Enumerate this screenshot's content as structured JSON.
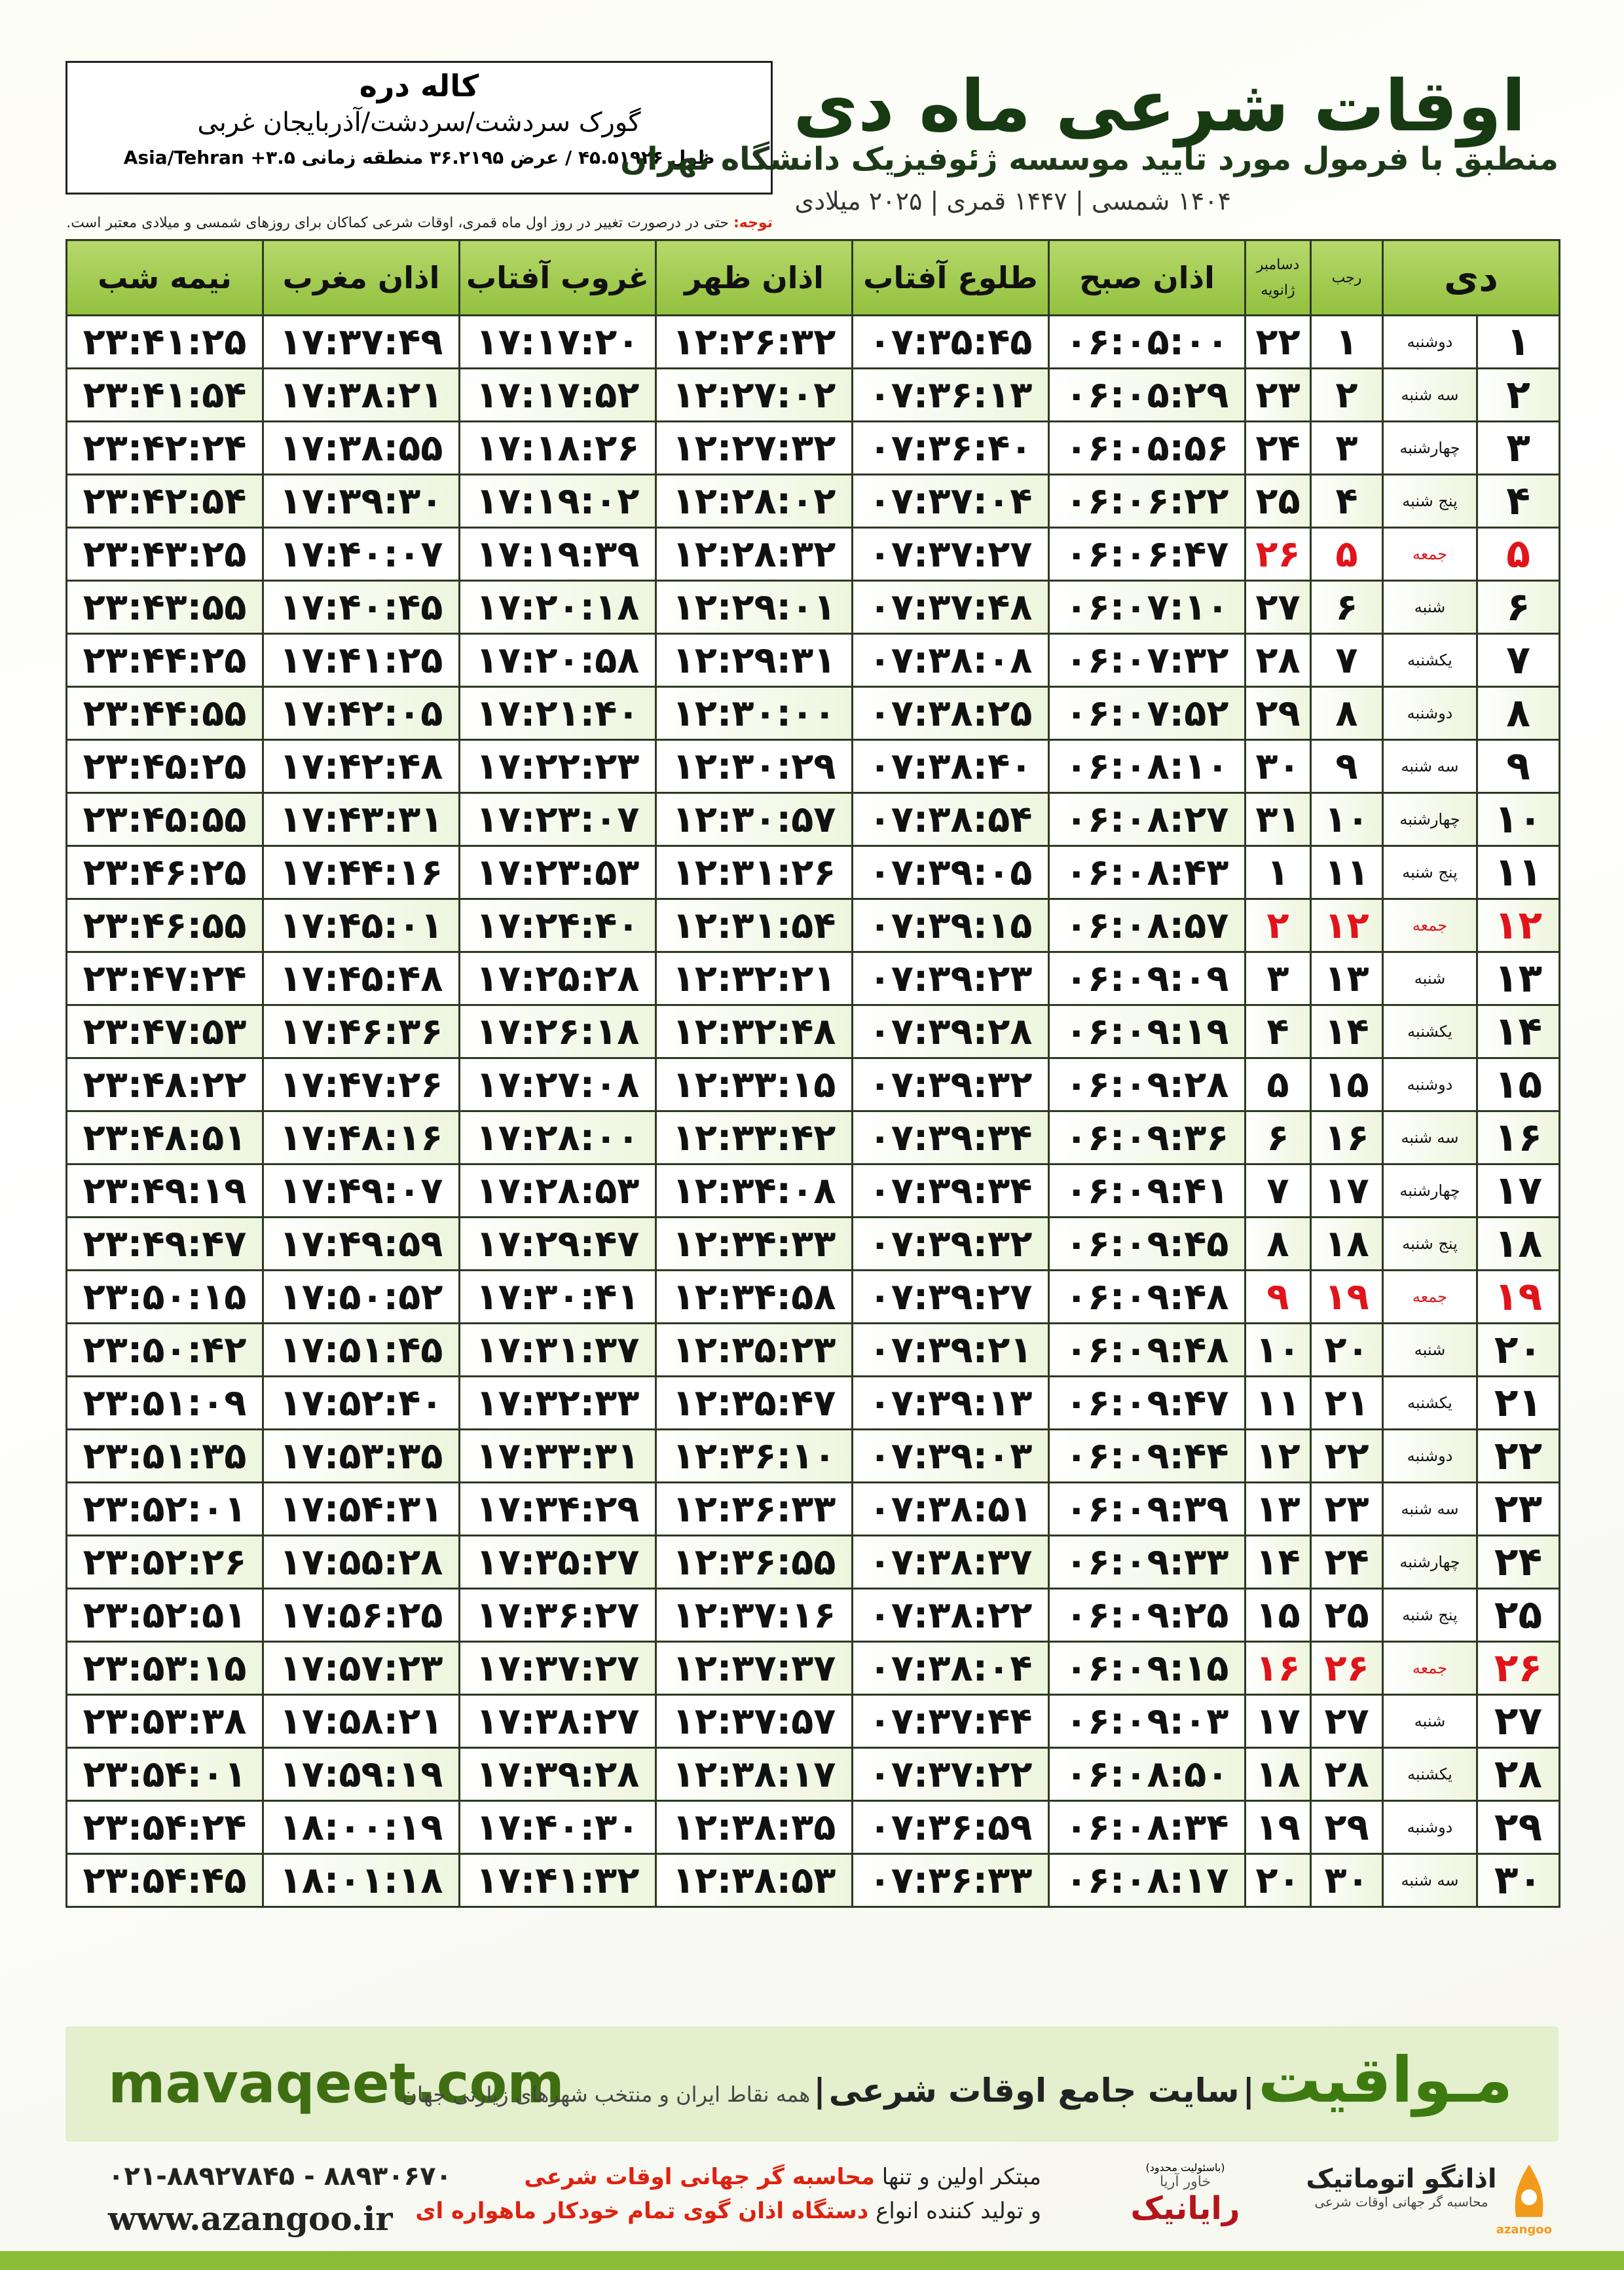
{
  "header": {
    "title": "اوقات شرعی ماه دی",
    "subtitle": "منطبق با فرمول مورد تایید موسسه ژئوفیزیک دانشگاه تهران",
    "dates": "۱۴۰۴ شمسی | ۱۴۴۷ قمری | ۲۰۲۵ میلادی"
  },
  "location": {
    "name": "کاله دره",
    "region": "گورک سردشت/سردشت/آذربایجان غربی",
    "coords": "طول ۴۵.۵۱۹۲۶ / عرض ۳۶.۲۱۹۵ منطقه زمانی ۳.۵+ Asia/Tehran"
  },
  "note": {
    "label": "توجه:",
    "text": "حتی در درصورت تغییر در روز اول ماه قمری، اوقات شرعی کماکان برای روزهای شمسی و میلادی معتبر است."
  },
  "table": {
    "headers": [
      "دی",
      "رجب",
      "دسامبر",
      "ژانویه",
      "اذان صبح",
      "طلوع آفتاب",
      "اذان ظهر",
      "غروب آفتاب",
      "اذان مغرب",
      "نیمه شب"
    ],
    "rows": [
      [
        "۱",
        "دوشنبه",
        "۱",
        "۲۲",
        "۰۶:۰۵:۰۰",
        "۰۷:۳۵:۴۵",
        "۱۲:۲۶:۳۲",
        "۱۷:۱۷:۲۰",
        "۱۷:۳۷:۴۹",
        "۲۳:۴۱:۲۵"
      ],
      [
        "۲",
        "سه شنبه",
        "۲",
        "۲۳",
        "۰۶:۰۵:۲۹",
        "۰۷:۳۶:۱۳",
        "۱۲:۲۷:۰۲",
        "۱۷:۱۷:۵۲",
        "۱۷:۳۸:۲۱",
        "۲۳:۴۱:۵۴"
      ],
      [
        "۳",
        "چهارشنبه",
        "۳",
        "۲۴",
        "۰۶:۰۵:۵۶",
        "۰۷:۳۶:۴۰",
        "۱۲:۲۷:۳۲",
        "۱۷:۱۸:۲۶",
        "۱۷:۳۸:۵۵",
        "۲۳:۴۲:۲۴"
      ],
      [
        "۴",
        "پنج شنبه",
        "۴",
        "۲۵",
        "۰۶:۰۶:۲۲",
        "۰۷:۳۷:۰۴",
        "۱۲:۲۸:۰۲",
        "۱۷:۱۹:۰۲",
        "۱۷:۳۹:۳۰",
        "۲۳:۴۲:۵۴"
      ],
      [
        "۵",
        "جمعه",
        "۵",
        "۲۶",
        "۰۶:۰۶:۴۷",
        "۰۷:۳۷:۲۷",
        "۱۲:۲۸:۳۲",
        "۱۷:۱۹:۳۹",
        "۱۷:۴۰:۰۷",
        "۲۳:۴۳:۲۵"
      ],
      [
        "۶",
        "شنبه",
        "۶",
        "۲۷",
        "۰۶:۰۷:۱۰",
        "۰۷:۳۷:۴۸",
        "۱۲:۲۹:۰۱",
        "۱۷:۲۰:۱۸",
        "۱۷:۴۰:۴۵",
        "۲۳:۴۳:۵۵"
      ],
      [
        "۷",
        "یکشنبه",
        "۷",
        "۲۸",
        "۰۶:۰۷:۳۲",
        "۰۷:۳۸:۰۸",
        "۱۲:۲۹:۳۱",
        "۱۷:۲۰:۵۸",
        "۱۷:۴۱:۲۵",
        "۲۳:۴۴:۲۵"
      ],
      [
        "۸",
        "دوشنبه",
        "۸",
        "۲۹",
        "۰۶:۰۷:۵۲",
        "۰۷:۳۸:۲۵",
        "۱۲:۳۰:۰۰",
        "۱۷:۲۱:۴۰",
        "۱۷:۴۲:۰۵",
        "۲۳:۴۴:۵۵"
      ],
      [
        "۹",
        "سه شنبه",
        "۹",
        "۳۰",
        "۰۶:۰۸:۱۰",
        "۰۷:۳۸:۴۰",
        "۱۲:۳۰:۲۹",
        "۱۷:۲۲:۲۳",
        "۱۷:۴۲:۴۸",
        "۲۳:۴۵:۲۵"
      ],
      [
        "۱۰",
        "چهارشنبه",
        "۱۰",
        "۳۱",
        "۰۶:۰۸:۲۷",
        "۰۷:۳۸:۵۴",
        "۱۲:۳۰:۵۷",
        "۱۷:۲۳:۰۷",
        "۱۷:۴۳:۳۱",
        "۲۳:۴۵:۵۵"
      ],
      [
        "۱۱",
        "پنج شنبه",
        "۱۱",
        "۱",
        "۰۶:۰۸:۴۳",
        "۰۷:۳۹:۰۵",
        "۱۲:۳۱:۲۶",
        "۱۷:۲۳:۵۳",
        "۱۷:۴۴:۱۶",
        "۲۳:۴۶:۲۵"
      ],
      [
        "۱۲",
        "جمعه",
        "۱۲",
        "۲",
        "۰۶:۰۸:۵۷",
        "۰۷:۳۹:۱۵",
        "۱۲:۳۱:۵۴",
        "۱۷:۲۴:۴۰",
        "۱۷:۴۵:۰۱",
        "۲۳:۴۶:۵۵"
      ],
      [
        "۱۳",
        "شنبه",
        "۱۳",
        "۳",
        "۰۶:۰۹:۰۹",
        "۰۷:۳۹:۲۳",
        "۱۲:۳۲:۲۱",
        "۱۷:۲۵:۲۸",
        "۱۷:۴۵:۴۸",
        "۲۳:۴۷:۲۴"
      ],
      [
        "۱۴",
        "یکشنبه",
        "۱۴",
        "۴",
        "۰۶:۰۹:۱۹",
        "۰۷:۳۹:۲۸",
        "۱۲:۳۲:۴۸",
        "۱۷:۲۶:۱۸",
        "۱۷:۴۶:۳۶",
        "۲۳:۴۷:۵۳"
      ],
      [
        "۱۵",
        "دوشنبه",
        "۱۵",
        "۵",
        "۰۶:۰۹:۲۸",
        "۰۷:۳۹:۳۲",
        "۱۲:۳۳:۱۵",
        "۱۷:۲۷:۰۸",
        "۱۷:۴۷:۲۶",
        "۲۳:۴۸:۲۲"
      ],
      [
        "۱۶",
        "سه شنبه",
        "۱۶",
        "۶",
        "۰۶:۰۹:۳۶",
        "۰۷:۳۹:۳۴",
        "۱۲:۳۳:۴۲",
        "۱۷:۲۸:۰۰",
        "۱۷:۴۸:۱۶",
        "۲۳:۴۸:۵۱"
      ],
      [
        "۱۷",
        "چهارشنبه",
        "۱۷",
        "۷",
        "۰۶:۰۹:۴۱",
        "۰۷:۳۹:۳۴",
        "۱۲:۳۴:۰۸",
        "۱۷:۲۸:۵۳",
        "۱۷:۴۹:۰۷",
        "۲۳:۴۹:۱۹"
      ],
      [
        "۱۸",
        "پنج شنبه",
        "۱۸",
        "۸",
        "۰۶:۰۹:۴۵",
        "۰۷:۳۹:۳۲",
        "۱۲:۳۴:۳۳",
        "۱۷:۲۹:۴۷",
        "۱۷:۴۹:۵۹",
        "۲۳:۴۹:۴۷"
      ],
      [
        "۱۹",
        "جمعه",
        "۱۹",
        "۹",
        "۰۶:۰۹:۴۸",
        "۰۷:۳۹:۲۷",
        "۱۲:۳۴:۵۸",
        "۱۷:۳۰:۴۱",
        "۱۷:۵۰:۵۲",
        "۲۳:۵۰:۱۵"
      ],
      [
        "۲۰",
        "شنبه",
        "۲۰",
        "۱۰",
        "۰۶:۰۹:۴۸",
        "۰۷:۳۹:۲۱",
        "۱۲:۳۵:۲۳",
        "۱۷:۳۱:۳۷",
        "۱۷:۵۱:۴۵",
        "۲۳:۵۰:۴۲"
      ],
      [
        "۲۱",
        "یکشنبه",
        "۲۱",
        "۱۱",
        "۰۶:۰۹:۴۷",
        "۰۷:۳۹:۱۳",
        "۱۲:۳۵:۴۷",
        "۱۷:۳۲:۳۳",
        "۱۷:۵۲:۴۰",
        "۲۳:۵۱:۰۹"
      ],
      [
        "۲۲",
        "دوشنبه",
        "۲۲",
        "۱۲",
        "۰۶:۰۹:۴۴",
        "۰۷:۳۹:۰۳",
        "۱۲:۳۶:۱۰",
        "۱۷:۳۳:۳۱",
        "۱۷:۵۳:۳۵",
        "۲۳:۵۱:۳۵"
      ],
      [
        "۲۳",
        "سه شنبه",
        "۲۳",
        "۱۳",
        "۰۶:۰۹:۳۹",
        "۰۷:۳۸:۵۱",
        "۱۲:۳۶:۳۳",
        "۱۷:۳۴:۲۹",
        "۱۷:۵۴:۳۱",
        "۲۳:۵۲:۰۱"
      ],
      [
        "۲۴",
        "چهارشنبه",
        "۲۴",
        "۱۴",
        "۰۶:۰۹:۳۳",
        "۰۷:۳۸:۳۷",
        "۱۲:۳۶:۵۵",
        "۱۷:۳۵:۲۷",
        "۱۷:۵۵:۲۸",
        "۲۳:۵۲:۲۶"
      ],
      [
        "۲۵",
        "پنج شنبه",
        "۲۵",
        "۱۵",
        "۰۶:۰۹:۲۵",
        "۰۷:۳۸:۲۲",
        "۱۲:۳۷:۱۶",
        "۱۷:۳۶:۲۷",
        "۱۷:۵۶:۲۵",
        "۲۳:۵۲:۵۱"
      ],
      [
        "۲۶",
        "جمعه",
        "۲۶",
        "۱۶",
        "۰۶:۰۹:۱۵",
        "۰۷:۳۸:۰۴",
        "۱۲:۳۷:۳۷",
        "۱۷:۳۷:۲۷",
        "۱۷:۵۷:۲۳",
        "۲۳:۵۳:۱۵"
      ],
      [
        "۲۷",
        "شنبه",
        "۲۷",
        "۱۷",
        "۰۶:۰۹:۰۳",
        "۰۷:۳۷:۴۴",
        "۱۲:۳۷:۵۷",
        "۱۷:۳۸:۲۷",
        "۱۷:۵۸:۲۱",
        "۲۳:۵۳:۳۸"
      ],
      [
        "۲۸",
        "یکشنبه",
        "۲۸",
        "۱۸",
        "۰۶:۰۸:۵۰",
        "۰۷:۳۷:۲۲",
        "۱۲:۳۸:۱۷",
        "۱۷:۳۹:۲۸",
        "۱۷:۵۹:۱۹",
        "۲۳:۵۴:۰۱"
      ],
      [
        "۲۹",
        "دوشنبه",
        "۲۹",
        "۱۹",
        "۰۶:۰۸:۳۴",
        "۰۷:۳۶:۵۹",
        "۱۲:۳۸:۳۵",
        "۱۷:۴۰:۳۰",
        "۱۸:۰۰:۱۹",
        "۲۳:۵۴:۲۴"
      ],
      [
        "۳۰",
        "سه شنبه",
        "۳۰",
        "۲۰",
        "۰۶:۰۸:۱۷",
        "۰۷:۳۶:۳۳",
        "۱۲:۳۸:۵۳",
        "۱۷:۴۱:۳۲",
        "۱۸:۰۱:۱۸",
        "۲۳:۵۴:۴۵"
      ]
    ]
  },
  "banner": {
    "site": "mavaqeet.com",
    "brand": "مـواقیت",
    "tagline": "سایت جامع اوقات شرعی",
    "coverage": "همه نقاط ایران و منتخب شهرهای زیارتی جهان"
  },
  "footer": {
    "phone": "۰۲۱-۸۸۹۲۷۸۴۵ - ۸۸۹۳۰۶۷۰",
    "url": "www.azangoo.ir",
    "line1": "مبتکر اولین و تنها",
    "line1_red": "محاسبه گر جهانی اوقات شرعی",
    "line2": "و تولید کننده انواع",
    "line2_red": "دستگاه اذان گوی تمام خودکار ماهواره ای",
    "logo1": {
      "note": "(باسئولیت محدود)",
      "name": "رایانیک",
      "sub": "خاور آریا"
    },
    "logo2": {
      "name": "اذانگو اتوماتیک",
      "sub": "محاسبه گر جهانی اوقات شرعی",
      "latin": "azangoo"
    }
  }
}
